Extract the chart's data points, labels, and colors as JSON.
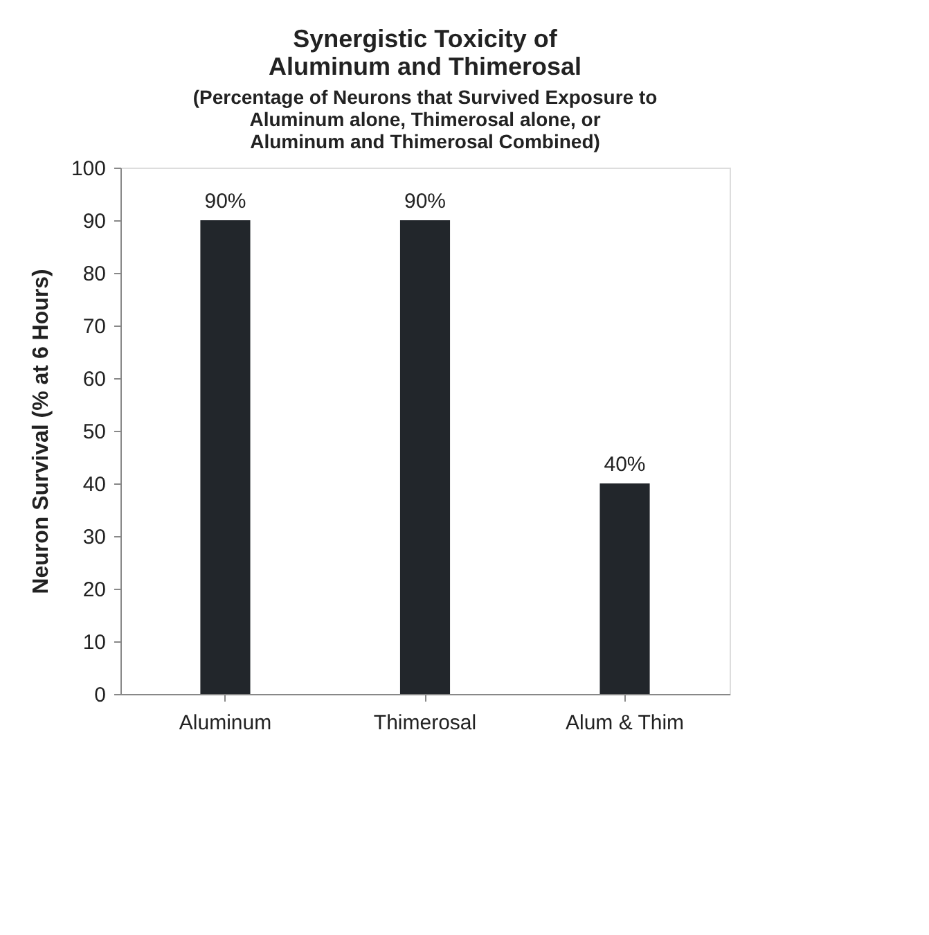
{
  "chart_data": {
    "type": "bar",
    "title": "Synergistic Toxicity of\nAluminum and Thimerosal",
    "subtitle": "(Percentage of Neurons that Survived Exposure to\nAluminum alone, Thimerosal alone,  or\nAluminum and Thimerosal Combined)",
    "ylabel": "Neuron Survival (% at 6 Hours)",
    "categories": [
      "Aluminum",
      "Thimerosal",
      "Alum & Thim"
    ],
    "values": [
      90,
      90,
      40
    ],
    "value_labels": [
      "90%",
      "90%",
      "40%"
    ],
    "color": "#22262b",
    "ylim": [
      0,
      100
    ],
    "yticks": [
      0,
      10,
      20,
      30,
      40,
      50,
      60,
      70,
      80,
      90,
      100
    ],
    "grid": false
  }
}
